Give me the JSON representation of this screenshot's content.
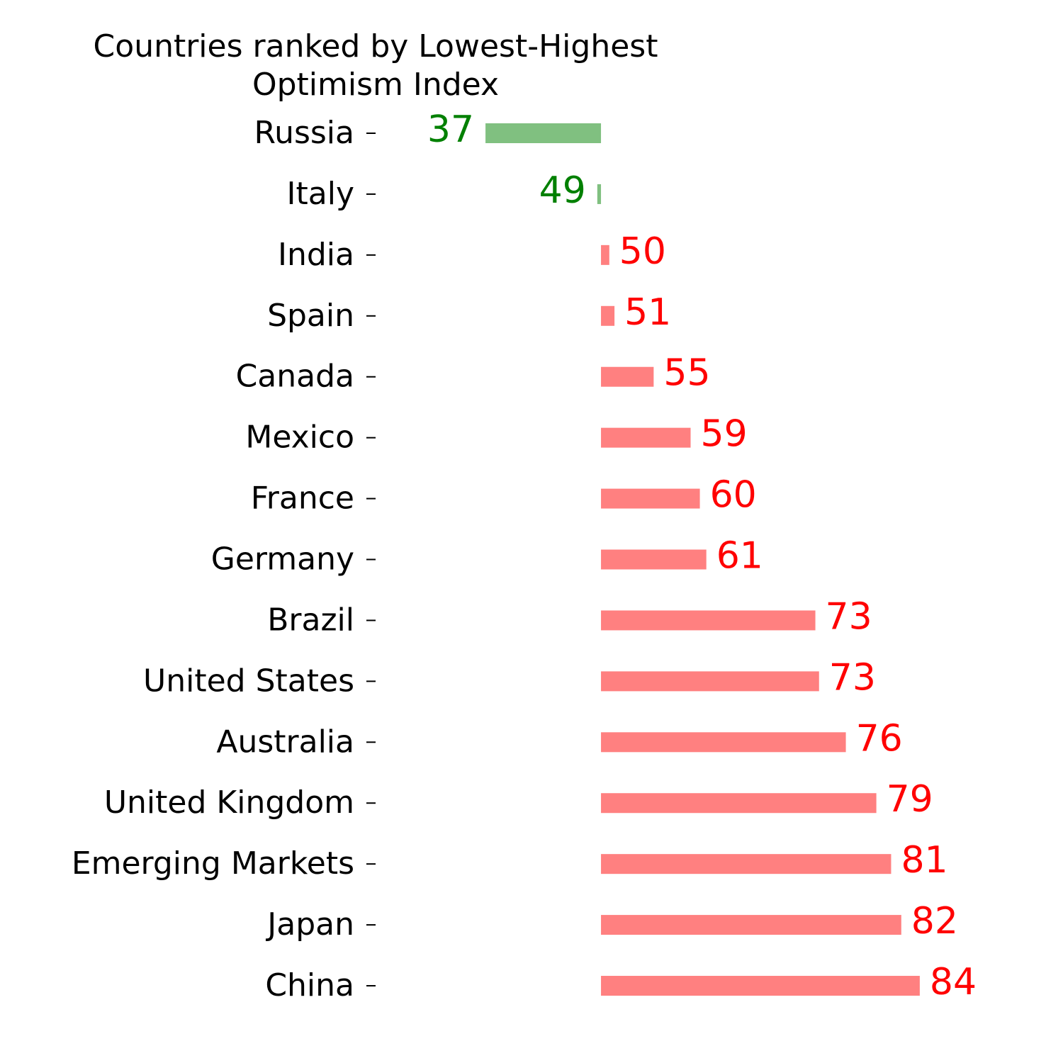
{
  "chart_data": {
    "type": "bar",
    "orientation": "horizontal",
    "title": "Countries ranked by Lowest-Highest\nOptimism Index",
    "categories": [
      "Russia",
      "Italy",
      "India",
      "Spain",
      "Canada",
      "Mexico",
      "France",
      "Germany",
      "Brazil",
      "United States",
      "Australia",
      "United Kingdom",
      "Emerging Markets",
      "Japan",
      "China"
    ],
    "values": [
      37.0,
      49.1,
      50.4,
      50.96,
      55.2,
      59.2,
      60.2,
      60.9,
      72.7,
      73.1,
      76.0,
      79.3,
      80.9,
      82.0,
      84.0
    ],
    "value_labels": [
      "37",
      "49",
      "50",
      "51",
      "55",
      "59",
      "60",
      "61",
      "73",
      "73",
      "76",
      "79",
      "81",
      "82",
      "84"
    ],
    "baseline": 49.5,
    "xlim": [
      35,
      87
    ],
    "below_color": "#80c080",
    "above_color": "#ff8080",
    "below_label_color": "#008000",
    "above_label_color": "#ff0000"
  }
}
